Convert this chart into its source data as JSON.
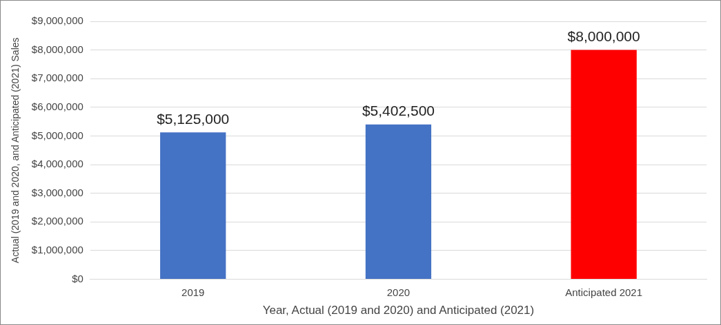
{
  "chart_data": {
    "type": "bar",
    "xlabel": "Year, Actual (2019 and 2020) and Anticipated (2021)",
    "ylabel": "Actual (2019 and 2020, and Anticipated (2021) Sales",
    "categories": [
      "2019",
      "2020",
      "Anticipated 2021"
    ],
    "values": [
      5125000,
      5402500,
      8000000
    ],
    "colors": [
      "#4472c4",
      "#4472c4",
      "#ff0000"
    ],
    "value_labels": [
      "$5,125,000",
      "$5,402,500",
      "$8,000,000"
    ],
    "ylim": [
      0,
      9000000
    ],
    "yticks": [
      {
        "value": 0,
        "label": "$0"
      },
      {
        "value": 1000000,
        "label": "$1,000,000"
      },
      {
        "value": 2000000,
        "label": "$2,000,000"
      },
      {
        "value": 3000000,
        "label": "$3,000,000"
      },
      {
        "value": 4000000,
        "label": "$4,000,000"
      },
      {
        "value": 5000000,
        "label": "$5,000,000"
      },
      {
        "value": 6000000,
        "label": "$6,000,000"
      },
      {
        "value": 7000000,
        "label": "$7,000,000"
      },
      {
        "value": 8000000,
        "label": "$8,000,000"
      },
      {
        "value": 9000000,
        "label": "$9,000,000"
      }
    ],
    "grid": "y",
    "legend": false
  }
}
